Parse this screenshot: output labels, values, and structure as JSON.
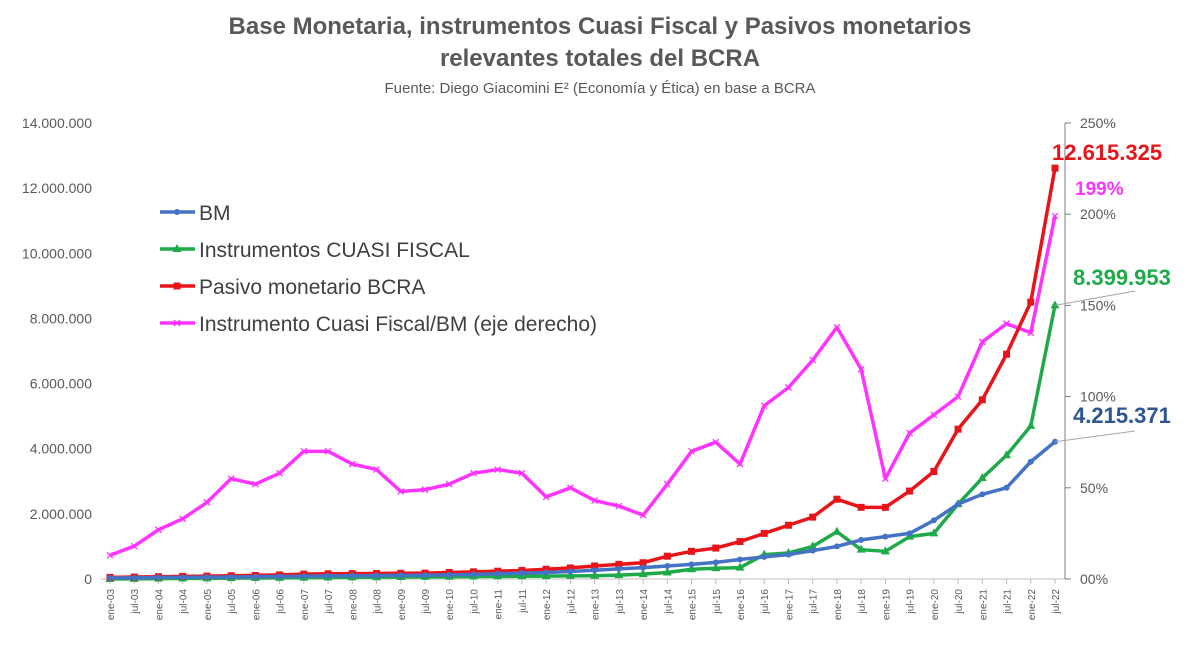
{
  "chart_data": {
    "type": "line",
    "title_line1": "Base Monetaria, instrumentos Cuasi Fiscal y Pasivos monetarios",
    "title_line2": "relevantes totales del BCRA",
    "subtitle": "Fuente: Diego Giacomini E² (Economía y Ética) en base a BCRA",
    "categories": [
      "ene-03",
      "jul-03",
      "ene-04",
      "jul-04",
      "ene-05",
      "jul-05",
      "ene-06",
      "jul-06",
      "ene-07",
      "jul-07",
      "ene-08",
      "jul-08",
      "ene-09",
      "jul-09",
      "ene-10",
      "jul-10",
      "ene-11",
      "jul-11",
      "ene-12",
      "jul-12",
      "ene-13",
      "jul-13",
      "ene-14",
      "jul-14",
      "ene-15",
      "jul-15",
      "ene-16",
      "jul-16",
      "ene-17",
      "jul-17",
      "ene-18",
      "jul-18",
      "ene-19",
      "jul-19",
      "ene-20",
      "jul-20",
      "ene-21",
      "jul-21",
      "ene-22",
      "jul-22"
    ],
    "y_left": {
      "range": [
        0,
        14000000
      ],
      "ticks": [
        "0",
        "2.000.000",
        "4.000.000",
        "6.000.000",
        "8.000.000",
        "10.000.000",
        "12.000.000",
        "14.000.000"
      ]
    },
    "y_right": {
      "range": [
        0,
        250
      ],
      "unit": "%",
      "ticks": [
        "00%",
        "50%",
        "100%",
        "150%",
        "200%",
        "250%"
      ]
    },
    "grid": false,
    "legend_placement": "top-left",
    "series": [
      {
        "name": "BM",
        "axis": "left",
        "color": "#4472C4",
        "marker": "circle",
        "values": [
          30000,
          35000,
          45000,
          50000,
          55000,
          60000,
          70000,
          75000,
          85000,
          95000,
          100000,
          105000,
          110000,
          115000,
          125000,
          140000,
          160000,
          180000,
          200000,
          230000,
          270000,
          310000,
          350000,
          400000,
          450000,
          510000,
          600000,
          680000,
          750000,
          870000,
          1000000,
          1200000,
          1300000,
          1400000,
          1800000,
          2300000,
          2600000,
          2800000,
          3600000,
          4215371
        ]
      },
      {
        "name": "Instrumentos CUASI FISCAL",
        "axis": "left",
        "color": "#1FAA4A",
        "marker": "triangle",
        "values": [
          0,
          5000,
          10000,
          15000,
          20000,
          25000,
          30000,
          35000,
          40000,
          45000,
          50000,
          55000,
          60000,
          65000,
          70000,
          75000,
          80000,
          85000,
          90000,
          95000,
          100000,
          120000,
          150000,
          200000,
          300000,
          330000,
          350000,
          750000,
          800000,
          1000000,
          1450000,
          900000,
          850000,
          1300000,
          1400000,
          2300000,
          3100000,
          3800000,
          4700000,
          8399953
        ]
      },
      {
        "name": "Pasivo monetario BCRA",
        "axis": "left",
        "color": "#E8141A",
        "marker": "square",
        "values": [
          50000,
          60000,
          70000,
          80000,
          90000,
          100000,
          110000,
          125000,
          150000,
          160000,
          165000,
          170000,
          175000,
          180000,
          200000,
          220000,
          240000,
          260000,
          300000,
          340000,
          400000,
          450000,
          500000,
          700000,
          850000,
          950000,
          1150000,
          1400000,
          1650000,
          1900000,
          2450000,
          2200000,
          2200000,
          2700000,
          3300000,
          4600000,
          5500000,
          6900000,
          8500000,
          12615325
        ]
      },
      {
        "name": "Instrumento Cuasi Fiscal/BM (eje derecho)",
        "axis": "right",
        "color": "#FF33FF",
        "marker": "x",
        "values": [
          13,
          18,
          27,
          33,
          42,
          55,
          52,
          58,
          70,
          70,
          63,
          60,
          48,
          49,
          52,
          58,
          60,
          58,
          45,
          50,
          43,
          40,
          35,
          52,
          70,
          75,
          63,
          95,
          105,
          120,
          138,
          115,
          55,
          80,
          90,
          100,
          130,
          140,
          135,
          199
        ]
      }
    ],
    "annotations": [
      {
        "text": "12.615.325",
        "color": "#E8141A"
      },
      {
        "text": "199%",
        "color": "#FF33FF"
      },
      {
        "text": "8.399.953",
        "color": "#1FAA4A"
      },
      {
        "text": "4.215.371",
        "color": "#2F5597"
      }
    ]
  }
}
